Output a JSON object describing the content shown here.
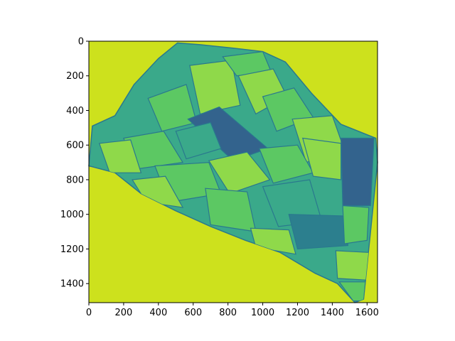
{
  "chart_data": {
    "type": "heatmap",
    "title": "",
    "xlabel": "",
    "ylabel": "",
    "xlim": [
      0,
      1660
    ],
    "ylim": [
      1510,
      0
    ],
    "x_ticks": [
      0,
      200,
      400,
      600,
      800,
      1000,
      1200,
      1400,
      1600
    ],
    "y_ticks": [
      0,
      200,
      400,
      600,
      800,
      1000,
      1200,
      1400
    ],
    "colormap": "viridis",
    "grid": false,
    "legend": "none",
    "colors": {
      "background": "#cde11d",
      "field_light": "#8fd94a",
      "field_mid": "#5cc863",
      "field_teal": "#3aa98a",
      "field_dark": "#2c7f8e",
      "field_darker": "#33638d",
      "boundary": "#2a788e"
    },
    "region_outline": [
      [
        510,
        10
      ],
      [
        640,
        20
      ],
      [
        830,
        40
      ],
      [
        1000,
        60
      ],
      [
        1130,
        120
      ],
      [
        1280,
        300
      ],
      [
        1450,
        480
      ],
      [
        1650,
        560
      ],
      [
        1660,
        700
      ],
      [
        1620,
        1100
      ],
      [
        1580,
        1490
      ],
      [
        1530,
        1510
      ],
      [
        1430,
        1400
      ],
      [
        1300,
        1340
      ],
      [
        1100,
        1220
      ],
      [
        900,
        1150
      ],
      [
        700,
        1070
      ],
      [
        500,
        980
      ],
      [
        300,
        880
      ],
      [
        150,
        760
      ],
      [
        0,
        720
      ],
      [
        20,
        490
      ],
      [
        150,
        430
      ],
      [
        260,
        250
      ],
      [
        400,
        100
      ]
    ],
    "fields": [
      {
        "tone": "field_mid",
        "points": [
          [
            340,
            330
          ],
          [
            560,
            250
          ],
          [
            620,
            470
          ],
          [
            420,
            520
          ]
        ]
      },
      {
        "tone": "field_light",
        "points": [
          [
            580,
            140
          ],
          [
            820,
            110
          ],
          [
            870,
            370
          ],
          [
            640,
            420
          ]
        ]
      },
      {
        "tone": "field_mid",
        "points": [
          [
            770,
            90
          ],
          [
            1000,
            60
          ],
          [
            1050,
            180
          ],
          [
            850,
            200
          ]
        ]
      },
      {
        "tone": "field_light",
        "points": [
          [
            860,
            200
          ],
          [
            1060,
            160
          ],
          [
            1140,
            320
          ],
          [
            960,
            420
          ]
        ]
      },
      {
        "tone": "field_mid",
        "points": [
          [
            1000,
            320
          ],
          [
            1180,
            270
          ],
          [
            1290,
            440
          ],
          [
            1080,
            520
          ]
        ]
      },
      {
        "tone": "field_light",
        "points": [
          [
            1170,
            450
          ],
          [
            1400,
            430
          ],
          [
            1470,
            630
          ],
          [
            1250,
            700
          ]
        ]
      },
      {
        "tone": "field_darker",
        "points": [
          [
            570,
            450
          ],
          [
            750,
            380
          ],
          [
            1030,
            620
          ],
          [
            830,
            690
          ]
        ]
      },
      {
        "tone": "field_teal",
        "points": [
          [
            500,
            520
          ],
          [
            700,
            470
          ],
          [
            760,
            620
          ],
          [
            560,
            680
          ]
        ]
      },
      {
        "tone": "field_mid",
        "points": [
          [
            200,
            560
          ],
          [
            430,
            520
          ],
          [
            540,
            700
          ],
          [
            260,
            740
          ]
        ]
      },
      {
        "tone": "field_light",
        "points": [
          [
            60,
            590
          ],
          [
            240,
            570
          ],
          [
            300,
            760
          ],
          [
            120,
            760
          ]
        ]
      },
      {
        "tone": "field_mid",
        "points": [
          [
            380,
            720
          ],
          [
            690,
            700
          ],
          [
            760,
            880
          ],
          [
            460,
            930
          ]
        ]
      },
      {
        "tone": "field_light",
        "points": [
          [
            690,
            690
          ],
          [
            910,
            640
          ],
          [
            1040,
            800
          ],
          [
            810,
            880
          ]
        ]
      },
      {
        "tone": "field_mid",
        "points": [
          [
            980,
            620
          ],
          [
            1200,
            600
          ],
          [
            1290,
            760
          ],
          [
            1060,
            820
          ]
        ]
      },
      {
        "tone": "field_light",
        "points": [
          [
            1230,
            560
          ],
          [
            1450,
            590
          ],
          [
            1450,
            800
          ],
          [
            1290,
            780
          ]
        ]
      },
      {
        "tone": "field_darker",
        "points": [
          [
            1450,
            560
          ],
          [
            1640,
            560
          ],
          [
            1620,
            950
          ],
          [
            1460,
            950
          ]
        ]
      },
      {
        "tone": "field_teal",
        "points": [
          [
            1000,
            840
          ],
          [
            1270,
            800
          ],
          [
            1340,
            1040
          ],
          [
            1090,
            1070
          ]
        ]
      },
      {
        "tone": "field_mid",
        "points": [
          [
            670,
            850
          ],
          [
            910,
            870
          ],
          [
            960,
            1100
          ],
          [
            700,
            1060
          ]
        ]
      },
      {
        "tone": "field_light",
        "points": [
          [
            250,
            800
          ],
          [
            440,
            780
          ],
          [
            540,
            960
          ],
          [
            330,
            930
          ]
        ]
      },
      {
        "tone": "field_dark",
        "points": [
          [
            1150,
            1000
          ],
          [
            1480,
            1010
          ],
          [
            1490,
            1180
          ],
          [
            1200,
            1200
          ]
        ]
      },
      {
        "tone": "field_mid",
        "points": [
          [
            1460,
            950
          ],
          [
            1610,
            960
          ],
          [
            1600,
            1150
          ],
          [
            1470,
            1170
          ]
        ]
      },
      {
        "tone": "field_light",
        "points": [
          [
            1420,
            1210
          ],
          [
            1610,
            1220
          ],
          [
            1600,
            1380
          ],
          [
            1430,
            1370
          ]
        ]
      },
      {
        "tone": "field_mid",
        "points": [
          [
            1440,
            1390
          ],
          [
            1590,
            1390
          ],
          [
            1580,
            1500
          ],
          [
            1520,
            1500
          ]
        ]
      },
      {
        "tone": "field_light",
        "points": [
          [
            930,
            1080
          ],
          [
            1150,
            1090
          ],
          [
            1190,
            1230
          ],
          [
            960,
            1190
          ]
        ]
      }
    ]
  }
}
